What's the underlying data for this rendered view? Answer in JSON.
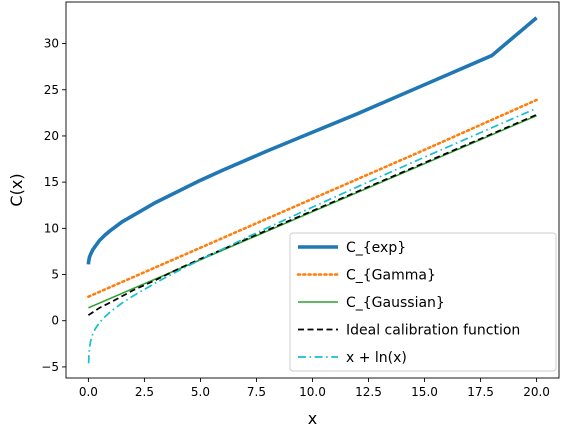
{
  "chart_data": {
    "type": "line",
    "title": "",
    "xlabel": "x",
    "ylabel": "C(x)",
    "xlim": [
      -1.0,
      21.0
    ],
    "ylim": [
      -6.2,
      34.5
    ],
    "xticks": [
      0.0,
      2.5,
      5.0,
      7.5,
      10.0,
      12.5,
      15.0,
      17.5,
      20.0
    ],
    "xtick_labels": [
      "0.0",
      "2.5",
      "5.0",
      "7.5",
      "10.0",
      "12.5",
      "15.0",
      "17.5",
      "20.0"
    ],
    "yticks": [
      -5,
      0,
      5,
      10,
      15,
      20,
      25,
      30
    ],
    "ytick_labels": [
      "−5",
      "0",
      "5",
      "10",
      "15",
      "20",
      "25",
      "30"
    ],
    "grid": false,
    "legend_position": "lower-right",
    "series": [
      {
        "name": "C_{exp}",
        "color": "#1f77b4",
        "style": "solid",
        "x": [
          0.0,
          0.01,
          0.05,
          0.1,
          0.2,
          0.35,
          0.5,
          0.75,
          1.0,
          1.5,
          2.0,
          3.0,
          4.0,
          5.0,
          6.0,
          8.0,
          10.0,
          12.0,
          14.0,
          16.0,
          18.0,
          20.0
        ],
        "y": [
          6.1,
          6.4,
          6.9,
          7.2,
          7.7,
          8.2,
          8.7,
          9.3,
          9.8,
          10.7,
          11.4,
          12.8,
          14.0,
          15.2,
          16.3,
          18.4,
          20.4,
          22.4,
          24.5,
          26.6,
          28.7,
          32.8
        ]
      },
      {
        "name": "C_{Gamma}",
        "color": "#ff7f0e",
        "style": "dotted",
        "x": [
          0.0,
          5.0,
          10.0,
          15.0,
          20.0
        ],
        "y": [
          2.6,
          7.9,
          13.2,
          18.5,
          23.9
        ]
      },
      {
        "name": "C_{Gaussian}",
        "color": "#2ca02c",
        "style": "solid",
        "x": [
          0.0,
          5.0,
          10.0,
          15.0,
          20.0
        ],
        "y": [
          1.4,
          6.6,
          11.8,
          17.0,
          22.2
        ]
      },
      {
        "name": "Ideal calibration function",
        "color": "#000000",
        "style": "dashed",
        "x": [
          0.0,
          0.25,
          0.5,
          1.0,
          2.0,
          3.0,
          4.0,
          5.0,
          7.5,
          10.0,
          12.5,
          15.0,
          17.5,
          20.0
        ],
        "y": [
          0.6,
          1.0,
          1.4,
          2.0,
          3.3,
          4.4,
          5.6,
          6.7,
          9.3,
          11.9,
          14.5,
          17.1,
          19.7,
          22.3
        ]
      },
      {
        "name": "x + ln(x)",
        "color": "#17becf",
        "style": "dashdot",
        "x": [
          0.01,
          0.02,
          0.05,
          0.1,
          0.2,
          0.3,
          0.5,
          0.75,
          1.0,
          1.5,
          2.0,
          3.0,
          4.0,
          5.0,
          7.5,
          10.0,
          12.5,
          15.0,
          17.5,
          20.0
        ],
        "y": [
          -4.6,
          -3.9,
          -2.95,
          -2.2,
          -1.4,
          -0.9,
          -0.19,
          0.46,
          1.0,
          1.91,
          2.69,
          4.1,
          5.39,
          6.61,
          9.51,
          12.3,
          15.03,
          17.71,
          20.36,
          23.0
        ]
      }
    ]
  }
}
